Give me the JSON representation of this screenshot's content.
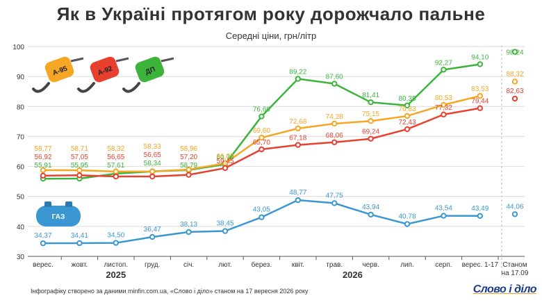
{
  "title": "Як в Україні протягом року дорожчало пальне",
  "subtitle": "Середні ціни, грн/літр",
  "footnote": "Інфографіку створено за даними minfin.com.ua, «Слово і діло» станом на 17 вересня 2026 року",
  "logo": "Слово і діло",
  "chart_data": {
    "type": "line",
    "categories": [
      "верес.",
      "жовт.",
      "листоп.",
      "груд.",
      "січ.",
      "лют.",
      "берез.",
      "квіт.",
      "трав.",
      "черв.",
      "лип.",
      "серп.",
      "верес. 1-17"
    ],
    "extra_category": [
      "Станом",
      "на 17.09"
    ],
    "year_labels": [
      {
        "text": "2025",
        "at": 2
      },
      {
        "text": "2026",
        "at": 8.5
      }
    ],
    "ylim": [
      30,
      100
    ],
    "yticks": [
      30,
      40,
      50,
      60,
      70,
      80,
      90,
      100
    ],
    "grid": true,
    "series": [
      {
        "name": "ДП",
        "color": "#3cb43c",
        "values": [
          55.91,
          55.95,
          57.61,
          58.34,
          58.79,
          60.73,
          76.69,
          89.22,
          87.6,
          81.41,
          80.35,
          92.27,
          94.1
        ],
        "current": 98.24
      },
      {
        "name": "А-95",
        "color": "#f5a623",
        "values": [
          58.77,
          58.71,
          58.32,
          58.33,
          58.96,
          61.07,
          69.6,
          72.68,
          74.28,
          75.15,
          76.83,
          80.53,
          83.53
        ],
        "current": 88.32
      },
      {
        "name": "А-92",
        "color": "#e8402f",
        "values": [
          56.92,
          57.05,
          56.65,
          56.65,
          57.2,
          59.45,
          65.7,
          67.18,
          68.06,
          69.24,
          72.43,
          77.32,
          79.44
        ],
        "current": 82.63
      },
      {
        "name": "ГАЗ",
        "color": "#3a97d1",
        "values": [
          34.37,
          34.41,
          34.5,
          36.47,
          38.13,
          38.45,
          43.05,
          48.77,
          47.75,
          43.94,
          40.78,
          43.54,
          43.49
        ],
        "current": 44.06
      }
    ],
    "badges": [
      "А-95",
      "А-92",
      "ДП",
      "ГАЗ"
    ]
  }
}
